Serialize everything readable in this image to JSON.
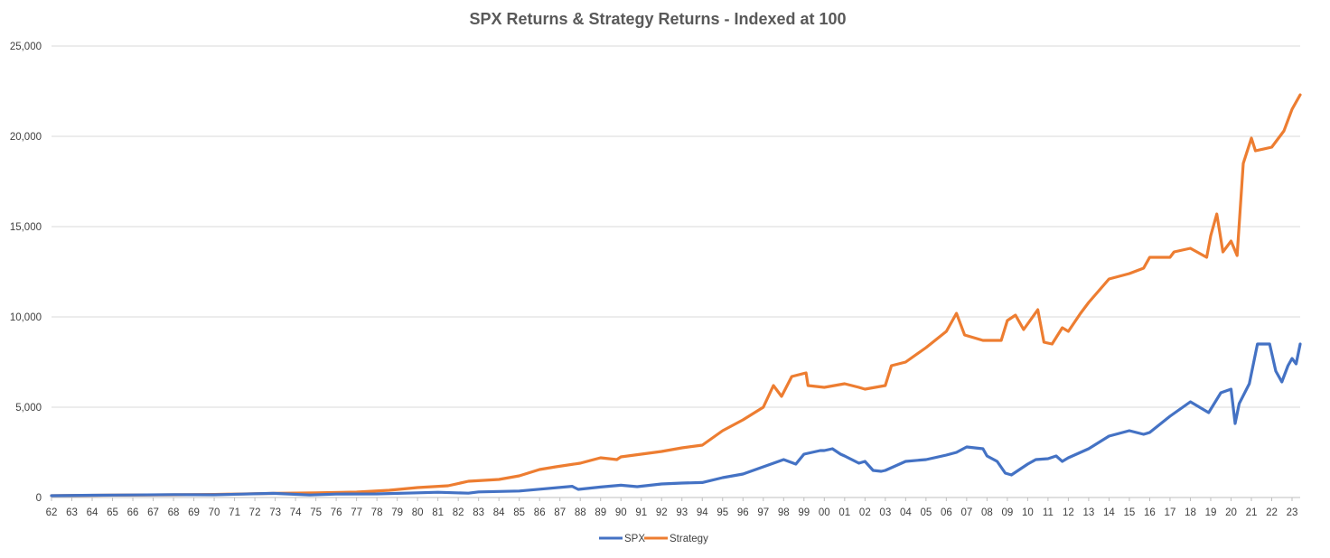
{
  "chart_data": {
    "type": "line",
    "title": "SPX Returns & Strategy Returns - Indexed at 100",
    "xlabel": "",
    "ylabel": "",
    "ylim": [
      0,
      25000
    ],
    "yticks": [
      "0",
      "5,000",
      "10,000",
      "15,000",
      "20,000",
      "25,000"
    ],
    "ytick_values": [
      0,
      5000,
      10000,
      15000,
      20000,
      25000
    ],
    "xlim": [
      1962,
      2023.4
    ],
    "xticks": [
      "62",
      "63",
      "64",
      "65",
      "66",
      "67",
      "68",
      "69",
      "70",
      "71",
      "72",
      "73",
      "74",
      "75",
      "76",
      "77",
      "78",
      "79",
      "80",
      "81",
      "82",
      "83",
      "84",
      "85",
      "86",
      "87",
      "88",
      "89",
      "90",
      "91",
      "92",
      "93",
      "94",
      "95",
      "96",
      "97",
      "98",
      "99",
      "00",
      "01",
      "02",
      "03",
      "04",
      "05",
      "06",
      "07",
      "08",
      "09",
      "10",
      "11",
      "12",
      "13",
      "14",
      "15",
      "16",
      "17",
      "18",
      "19",
      "20",
      "21",
      "22",
      "23"
    ],
    "grid": true,
    "legend_position": "bottom",
    "series": [
      {
        "name": "SPX",
        "color": "#4472C4",
        "points": [
          [
            1962,
            100
          ],
          [
            1964,
            125
          ],
          [
            1966,
            140
          ],
          [
            1968,
            160
          ],
          [
            1970,
            150
          ],
          [
            1972.9,
            230
          ],
          [
            1974.7,
            140
          ],
          [
            1976,
            190
          ],
          [
            1978,
            200
          ],
          [
            1980,
            260
          ],
          [
            1981,
            290
          ],
          [
            1982.5,
            240
          ],
          [
            1983,
            310
          ],
          [
            1985,
            360
          ],
          [
            1986,
            460
          ],
          [
            1987.6,
            620
          ],
          [
            1987.9,
            450
          ],
          [
            1989,
            580
          ],
          [
            1990,
            680
          ],
          [
            1990.8,
            600
          ],
          [
            1992,
            750
          ],
          [
            1993,
            800
          ],
          [
            1994,
            830
          ],
          [
            1995,
            1100
          ],
          [
            1996,
            1300
          ],
          [
            1997,
            1700
          ],
          [
            1998,
            2100
          ],
          [
            1998.6,
            1850
          ],
          [
            1999,
            2400
          ],
          [
            1999.8,
            2600
          ],
          [
            2000,
            2600
          ],
          [
            2000.4,
            2700
          ],
          [
            2000.8,
            2400
          ],
          [
            2001,
            2300
          ],
          [
            2001.7,
            1900
          ],
          [
            2002,
            2000
          ],
          [
            2002.4,
            1500
          ],
          [
            2002.8,
            1450
          ],
          [
            2003,
            1500
          ],
          [
            2004,
            2000
          ],
          [
            2005,
            2100
          ],
          [
            2006,
            2350
          ],
          [
            2006.5,
            2500
          ],
          [
            2007,
            2800
          ],
          [
            2007.8,
            2700
          ],
          [
            2008,
            2300
          ],
          [
            2008.5,
            2000
          ],
          [
            2008.9,
            1350
          ],
          [
            2009.2,
            1250
          ],
          [
            2010,
            1850
          ],
          [
            2010.4,
            2100
          ],
          [
            2011,
            2150
          ],
          [
            2011.4,
            2300
          ],
          [
            2011.7,
            2000
          ],
          [
            2012,
            2200
          ],
          [
            2013,
            2700
          ],
          [
            2014,
            3400
          ],
          [
            2015,
            3700
          ],
          [
            2015.7,
            3500
          ],
          [
            2016,
            3600
          ],
          [
            2017,
            4500
          ],
          [
            2018,
            5300
          ],
          [
            2018.9,
            4700
          ],
          [
            2019.5,
            5800
          ],
          [
            2020,
            6000
          ],
          [
            2020.2,
            4100
          ],
          [
            2020.4,
            5200
          ],
          [
            2020.9,
            6300
          ],
          [
            2021.3,
            8500
          ],
          [
            2021.9,
            8500
          ],
          [
            2022.2,
            7000
          ],
          [
            2022.5,
            6400
          ],
          [
            2022.8,
            7300
          ],
          [
            2023,
            7700
          ],
          [
            2023.2,
            7400
          ],
          [
            2023.4,
            8500
          ]
        ]
      },
      {
        "name": "Strategy",
        "color": "#ED7D31",
        "points": [
          [
            1962,
            100
          ],
          [
            1965,
            130
          ],
          [
            1968,
            150
          ],
          [
            1970,
            170
          ],
          [
            1973,
            230
          ],
          [
            1975,
            260
          ],
          [
            1977,
            300
          ],
          [
            1978.6,
            400
          ],
          [
            1980,
            550
          ],
          [
            1981.5,
            650
          ],
          [
            1982.5,
            900
          ],
          [
            1984,
            1000
          ],
          [
            1985,
            1200
          ],
          [
            1986,
            1550
          ],
          [
            1986.8,
            1700
          ],
          [
            1988,
            1900
          ],
          [
            1989,
            2200
          ],
          [
            1989.8,
            2100
          ],
          [
            1990,
            2250
          ],
          [
            1991,
            2400
          ],
          [
            1992,
            2550
          ],
          [
            1993,
            2750
          ],
          [
            1994,
            2900
          ],
          [
            1995,
            3700
          ],
          [
            1996,
            4300
          ],
          [
            1997,
            5000
          ],
          [
            1997.5,
            6200
          ],
          [
            1997.9,
            5600
          ],
          [
            1998.4,
            6700
          ],
          [
            1999.1,
            6900
          ],
          [
            1999.2,
            6200
          ],
          [
            2000,
            6100
          ],
          [
            2001,
            6300
          ],
          [
            2001.7,
            6100
          ],
          [
            2002,
            6000
          ],
          [
            2003,
            6200
          ],
          [
            2003.3,
            7300
          ],
          [
            2004,
            7500
          ],
          [
            2005,
            8300
          ],
          [
            2006,
            9200
          ],
          [
            2006.5,
            10200
          ],
          [
            2006.9,
            9000
          ],
          [
            2007.8,
            8700
          ],
          [
            2008.7,
            8700
          ],
          [
            2009,
            9800
          ],
          [
            2009.4,
            10100
          ],
          [
            2009.8,
            9300
          ],
          [
            2010.5,
            10400
          ],
          [
            2010.8,
            8600
          ],
          [
            2011.2,
            8500
          ],
          [
            2011.7,
            9400
          ],
          [
            2012,
            9200
          ],
          [
            2012.6,
            10200
          ],
          [
            2013,
            10800
          ],
          [
            2014,
            12100
          ],
          [
            2015,
            12400
          ],
          [
            2015.7,
            12700
          ],
          [
            2016,
            13300
          ],
          [
            2017,
            13300
          ],
          [
            2017.2,
            13600
          ],
          [
            2018,
            13800
          ],
          [
            2018.8,
            13300
          ],
          [
            2019,
            14500
          ],
          [
            2019.3,
            15700
          ],
          [
            2019.6,
            13600
          ],
          [
            2020,
            14200
          ],
          [
            2020.3,
            13400
          ],
          [
            2020.6,
            18500
          ],
          [
            2021,
            19900
          ],
          [
            2021.2,
            19200
          ],
          [
            2022,
            19400
          ],
          [
            2022.6,
            20300
          ],
          [
            2023,
            21500
          ],
          [
            2023.4,
            22300
          ]
        ]
      }
    ]
  }
}
